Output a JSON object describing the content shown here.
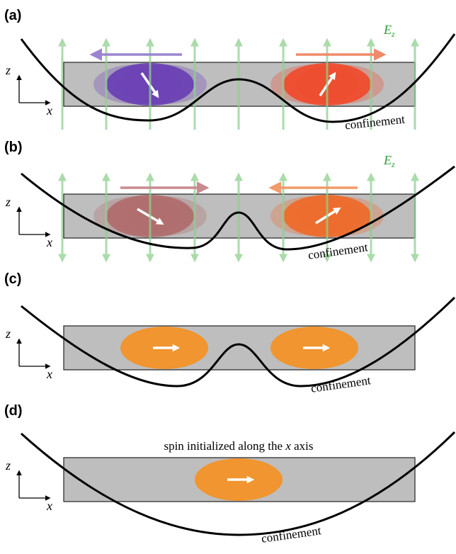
{
  "panels": [
    {
      "label": "(a)",
      "field_label": {
        "symbol": "E",
        "subscript": "z"
      },
      "axis_z": "z",
      "axis_x": "x",
      "confinement_label": "confinement"
    },
    {
      "label": "(b)",
      "field_label": {
        "symbol": "E",
        "subscript": "z"
      },
      "axis_z": "z",
      "axis_x": "x",
      "confinement_label": "confinement"
    },
    {
      "label": "(c)",
      "axis_z": "z",
      "axis_x": "x",
      "confinement_label": "confinement"
    },
    {
      "label": "(d)",
      "axis_z": "z",
      "axis_x": "x",
      "confinement_label": "confinement",
      "caption": {
        "before": "spin initialized along the ",
        "italic": "x",
        "after": " axis"
      }
    }
  ]
}
